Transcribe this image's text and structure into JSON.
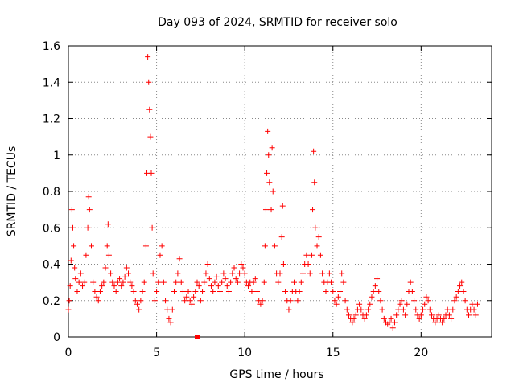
{
  "chart_data": {
    "type": "scatter",
    "title": "Day 093 of 2024, SRMTID for receiver solo",
    "xlabel": "GPS time / hours",
    "ylabel": "SRMTID / TECUs",
    "xlim": [
      0,
      24
    ],
    "ylim": [
      0,
      1.6
    ],
    "x_ticks": [
      0,
      5,
      10,
      15,
      20
    ],
    "x_tick_labels": [
      "0",
      "5",
      "10",
      "15",
      "20"
    ],
    "y_ticks": [
      0,
      0.2,
      0.4,
      0.6,
      0.8,
      1.0,
      1.2,
      1.4,
      1.6
    ],
    "y_tick_labels": [
      "0",
      "0.2",
      "0.4",
      "0.6",
      "0.8",
      "1",
      "1.2",
      "1.4",
      "1.6"
    ],
    "grid": true,
    "legend": "none",
    "marker": "plus",
    "series": [
      {
        "name": "SRMTID",
        "color": "#ff0000",
        "points": [
          [
            0.0,
            0.15
          ],
          [
            0.05,
            0.2
          ],
          [
            0.1,
            0.28
          ],
          [
            0.15,
            0.42
          ],
          [
            0.2,
            0.7
          ],
          [
            0.25,
            0.6
          ],
          [
            0.3,
            0.5
          ],
          [
            0.35,
            0.38
          ],
          [
            0.4,
            0.32
          ],
          [
            0.5,
            0.25
          ],
          [
            0.6,
            0.3
          ],
          [
            0.7,
            0.35
          ],
          [
            0.8,
            0.28
          ],
          [
            0.9,
            0.3
          ],
          [
            1.0,
            0.45
          ],
          [
            1.1,
            0.6
          ],
          [
            1.15,
            0.77
          ],
          [
            1.2,
            0.7
          ],
          [
            1.3,
            0.5
          ],
          [
            1.4,
            0.3
          ],
          [
            1.5,
            0.25
          ],
          [
            1.6,
            0.22
          ],
          [
            1.7,
            0.2
          ],
          [
            1.8,
            0.25
          ],
          [
            1.9,
            0.28
          ],
          [
            2.0,
            0.3
          ],
          [
            2.1,
            0.38
          ],
          [
            2.2,
            0.5
          ],
          [
            2.25,
            0.62
          ],
          [
            2.3,
            0.45
          ],
          [
            2.4,
            0.35
          ],
          [
            2.5,
            0.3
          ],
          [
            2.6,
            0.28
          ],
          [
            2.7,
            0.25
          ],
          [
            2.8,
            0.3
          ],
          [
            2.9,
            0.32
          ],
          [
            3.0,
            0.28
          ],
          [
            3.1,
            0.3
          ],
          [
            3.2,
            0.33
          ],
          [
            3.3,
            0.38
          ],
          [
            3.4,
            0.35
          ],
          [
            3.5,
            0.3
          ],
          [
            3.6,
            0.28
          ],
          [
            3.7,
            0.25
          ],
          [
            3.8,
            0.2
          ],
          [
            3.9,
            0.18
          ],
          [
            4.0,
            0.15
          ],
          [
            4.1,
            0.2
          ],
          [
            4.2,
            0.25
          ],
          [
            4.3,
            0.3
          ],
          [
            4.4,
            0.5
          ],
          [
            4.45,
            0.9
          ],
          [
            4.5,
            1.54
          ],
          [
            4.55,
            1.4
          ],
          [
            4.6,
            1.25
          ],
          [
            4.65,
            1.1
          ],
          [
            4.7,
            0.9
          ],
          [
            4.75,
            0.6
          ],
          [
            4.8,
            0.35
          ],
          [
            4.9,
            0.2
          ],
          [
            5.0,
            0.25
          ],
          [
            5.1,
            0.3
          ],
          [
            5.2,
            0.45
          ],
          [
            5.3,
            0.5
          ],
          [
            5.4,
            0.3
          ],
          [
            5.5,
            0.2
          ],
          [
            5.6,
            0.15
          ],
          [
            5.7,
            0.1
          ],
          [
            5.8,
            0.08
          ],
          [
            5.9,
            0.15
          ],
          [
            6.0,
            0.25
          ],
          [
            6.1,
            0.3
          ],
          [
            6.2,
            0.35
          ],
          [
            6.3,
            0.43
          ],
          [
            6.4,
            0.3
          ],
          [
            6.5,
            0.25
          ],
          [
            6.6,
            0.2
          ],
          [
            6.7,
            0.22
          ],
          [
            6.8,
            0.25
          ],
          [
            6.9,
            0.2
          ],
          [
            7.0,
            0.18
          ],
          [
            7.1,
            0.22
          ],
          [
            7.2,
            0.25
          ],
          [
            7.3,
            0.3
          ],
          [
            7.4,
            0.28
          ],
          [
            7.5,
            0.2
          ],
          [
            7.6,
            0.25
          ],
          [
            7.7,
            0.3
          ],
          [
            7.8,
            0.35
          ],
          [
            7.9,
            0.4
          ],
          [
            8.0,
            0.32
          ],
          [
            8.1,
            0.28
          ],
          [
            8.2,
            0.25
          ],
          [
            8.3,
            0.3
          ],
          [
            8.4,
            0.33
          ],
          [
            8.5,
            0.28
          ],
          [
            8.6,
            0.25
          ],
          [
            8.7,
            0.3
          ],
          [
            8.8,
            0.35
          ],
          [
            8.9,
            0.32
          ],
          [
            9.0,
            0.28
          ],
          [
            9.1,
            0.25
          ],
          [
            9.2,
            0.3
          ],
          [
            9.3,
            0.35
          ],
          [
            9.4,
            0.38
          ],
          [
            9.5,
            0.32
          ],
          [
            9.6,
            0.3
          ],
          [
            9.7,
            0.35
          ],
          [
            9.8,
            0.4
          ],
          [
            9.9,
            0.38
          ],
          [
            10.0,
            0.35
          ],
          [
            10.1,
            0.3
          ],
          [
            10.2,
            0.28
          ],
          [
            10.3,
            0.3
          ],
          [
            10.4,
            0.25
          ],
          [
            10.5,
            0.3
          ],
          [
            10.6,
            0.32
          ],
          [
            10.7,
            0.25
          ],
          [
            10.8,
            0.2
          ],
          [
            10.9,
            0.18
          ],
          [
            11.0,
            0.2
          ],
          [
            11.1,
            0.3
          ],
          [
            11.15,
            0.5
          ],
          [
            11.2,
            0.7
          ],
          [
            11.25,
            0.9
          ],
          [
            11.3,
            1.13
          ],
          [
            11.35,
            1.0
          ],
          [
            11.4,
            0.85
          ],
          [
            11.5,
            0.7
          ],
          [
            11.55,
            1.04
          ],
          [
            11.6,
            0.8
          ],
          [
            11.7,
            0.5
          ],
          [
            11.8,
            0.35
          ],
          [
            11.9,
            0.3
          ],
          [
            12.0,
            0.35
          ],
          [
            12.1,
            0.55
          ],
          [
            12.15,
            0.72
          ],
          [
            12.2,
            0.4
          ],
          [
            12.3,
            0.25
          ],
          [
            12.4,
            0.2
          ],
          [
            12.5,
            0.15
          ],
          [
            12.6,
            0.2
          ],
          [
            12.7,
            0.25
          ],
          [
            12.8,
            0.3
          ],
          [
            12.9,
            0.25
          ],
          [
            13.0,
            0.2
          ],
          [
            13.1,
            0.25
          ],
          [
            13.2,
            0.3
          ],
          [
            13.3,
            0.35
          ],
          [
            13.4,
            0.4
          ],
          [
            13.5,
            0.45
          ],
          [
            13.6,
            0.4
          ],
          [
            13.7,
            0.35
          ],
          [
            13.8,
            0.45
          ],
          [
            13.85,
            0.7
          ],
          [
            13.9,
            1.02
          ],
          [
            13.95,
            0.85
          ],
          [
            14.0,
            0.6
          ],
          [
            14.1,
            0.5
          ],
          [
            14.2,
            0.55
          ],
          [
            14.3,
            0.45
          ],
          [
            14.4,
            0.35
          ],
          [
            14.5,
            0.3
          ],
          [
            14.6,
            0.25
          ],
          [
            14.7,
            0.3
          ],
          [
            14.8,
            0.35
          ],
          [
            14.9,
            0.3
          ],
          [
            15.0,
            0.25
          ],
          [
            15.1,
            0.2
          ],
          [
            15.2,
            0.18
          ],
          [
            15.3,
            0.22
          ],
          [
            15.4,
            0.25
          ],
          [
            15.5,
            0.35
          ],
          [
            15.6,
            0.3
          ],
          [
            15.7,
            0.2
          ],
          [
            15.8,
            0.15
          ],
          [
            15.9,
            0.12
          ],
          [
            16.0,
            0.1
          ],
          [
            16.1,
            0.08
          ],
          [
            16.2,
            0.1
          ],
          [
            16.3,
            0.12
          ],
          [
            16.4,
            0.15
          ],
          [
            16.5,
            0.18
          ],
          [
            16.6,
            0.15
          ],
          [
            16.7,
            0.12
          ],
          [
            16.8,
            0.1
          ],
          [
            16.9,
            0.12
          ],
          [
            17.0,
            0.15
          ],
          [
            17.1,
            0.18
          ],
          [
            17.2,
            0.22
          ],
          [
            17.3,
            0.25
          ],
          [
            17.4,
            0.28
          ],
          [
            17.5,
            0.32
          ],
          [
            17.6,
            0.25
          ],
          [
            17.7,
            0.2
          ],
          [
            17.8,
            0.15
          ],
          [
            17.9,
            0.1
          ],
          [
            18.0,
            0.08
          ],
          [
            18.1,
            0.07
          ],
          [
            18.2,
            0.08
          ],
          [
            18.3,
            0.1
          ],
          [
            18.4,
            0.05
          ],
          [
            18.5,
            0.08
          ],
          [
            18.6,
            0.12
          ],
          [
            18.7,
            0.15
          ],
          [
            18.8,
            0.18
          ],
          [
            18.9,
            0.2
          ],
          [
            19.0,
            0.15
          ],
          [
            19.1,
            0.12
          ],
          [
            19.2,
            0.18
          ],
          [
            19.3,
            0.25
          ],
          [
            19.4,
            0.3
          ],
          [
            19.5,
            0.25
          ],
          [
            19.6,
            0.2
          ],
          [
            19.7,
            0.15
          ],
          [
            19.8,
            0.12
          ],
          [
            19.9,
            0.1
          ],
          [
            20.0,
            0.12
          ],
          [
            20.1,
            0.15
          ],
          [
            20.2,
            0.18
          ],
          [
            20.3,
            0.22
          ],
          [
            20.4,
            0.2
          ],
          [
            20.5,
            0.15
          ],
          [
            20.6,
            0.12
          ],
          [
            20.7,
            0.1
          ],
          [
            20.8,
            0.08
          ],
          [
            20.9,
            0.1
          ],
          [
            21.0,
            0.12
          ],
          [
            21.1,
            0.1
          ],
          [
            21.2,
            0.08
          ],
          [
            21.3,
            0.1
          ],
          [
            21.4,
            0.12
          ],
          [
            21.5,
            0.15
          ],
          [
            21.6,
            0.12
          ],
          [
            21.7,
            0.1
          ],
          [
            21.8,
            0.15
          ],
          [
            21.9,
            0.2
          ],
          [
            22.0,
            0.22
          ],
          [
            22.1,
            0.25
          ],
          [
            22.2,
            0.28
          ],
          [
            22.3,
            0.3
          ],
          [
            22.4,
            0.25
          ],
          [
            22.5,
            0.2
          ],
          [
            22.6,
            0.15
          ],
          [
            22.7,
            0.12
          ],
          [
            22.8,
            0.15
          ],
          [
            22.9,
            0.18
          ],
          [
            23.0,
            0.15
          ],
          [
            23.1,
            0.12
          ],
          [
            23.2,
            0.18
          ]
        ]
      }
    ],
    "annotations": [
      {
        "kind": "square-marker",
        "x": 7.3,
        "y": 0.0,
        "color": "#ff0000"
      }
    ]
  }
}
